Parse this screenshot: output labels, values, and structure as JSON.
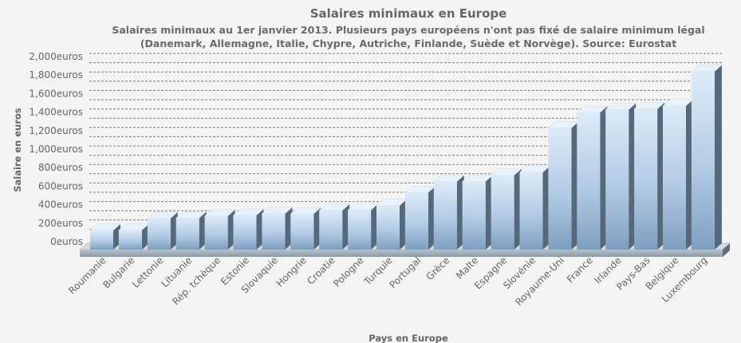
{
  "chart_data": {
    "type": "bar",
    "title": "Salaires minimaux en Europe",
    "subtitle_lines": [
      "Salaires minimaux au 1er janvier 2013. Plusieurs pays européens n'ont pas fixé de salaire minimum légal",
      "(Danemark, Allemagne, Italie, Chypre, Autriche, Finlande, Suède et Norvège). Source: Eurostat"
    ],
    "xlabel": "Pays en Europe",
    "ylabel": "Salaire en euros",
    "ylim": [
      0,
      2000
    ],
    "y_ticks": [
      "0euros",
      "200euros",
      "400euros",
      "600euros",
      "800euros",
      "1,000euros",
      "1,200euros",
      "1,400euros",
      "1,600euros",
      "1,800euros",
      "2,000euros"
    ],
    "categories": [
      "Roumanie",
      "Bulgarie",
      "Lettonie",
      "Lituanie",
      "Rép. tchèque",
      "Estonie",
      "Slovaquie",
      "Hongrie",
      "Croatie",
      "Pologne",
      "Turquie",
      "Portugal",
      "Grèce",
      "Malte",
      "Espagne",
      "Slovénie",
      "Royaume-Uni",
      "France",
      "Irlande",
      "Pays-Bas",
      "Belgique",
      "Luxembourg"
    ],
    "values": [
      157,
      159,
      287,
      290,
      312,
      320,
      338,
      335,
      372,
      376,
      425,
      566,
      684,
      685,
      753,
      784,
      1264,
      1430,
      1462,
      1469,
      1502,
      1874
    ],
    "grid": true,
    "legend": "none",
    "colors": {
      "bar_top": "#ddebf8",
      "bar_mid": "#b2cbe4",
      "bar_bottom": "#7f9fbf",
      "bar_side": "#56697c",
      "floor": "#8d9aa6"
    }
  }
}
